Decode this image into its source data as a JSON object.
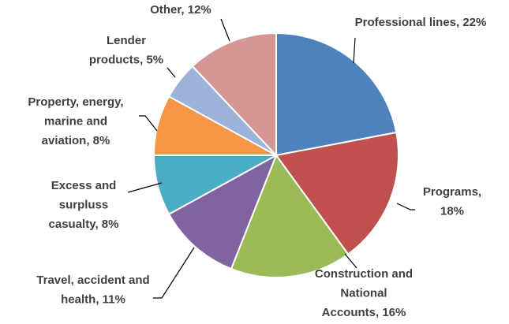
{
  "chart_data": {
    "type": "pie",
    "values": [
      22,
      18,
      16,
      11,
      8,
      8,
      5,
      12
    ],
    "value_labels": [
      "Professional lines, 22%",
      "Programs,\n18%",
      "Construction and\nNational\nAccounts, 16%",
      "Travel, accident and\nhealth, 11%",
      "Excess and\nsurpluss\ncasualty, 8%",
      "Property, energy,\nmarine and\naviation, 8%",
      "Lender\nproducts, 5%",
      "Other, 12%"
    ],
    "colors": [
      "#4f81bd",
      "#c0504d",
      "#9bbb59",
      "#8064a2",
      "#4bacc6",
      "#f79646",
      "#9bb3d9",
      "#d59795"
    ]
  }
}
